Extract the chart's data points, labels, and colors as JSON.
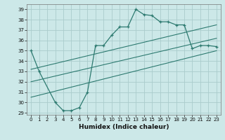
{
  "xlabel": "Humidex (Indice chaleur)",
  "xlim": [
    -0.5,
    23.5
  ],
  "ylim": [
    28.8,
    39.5
  ],
  "yticks": [
    29,
    30,
    31,
    32,
    33,
    34,
    35,
    36,
    37,
    38,
    39
  ],
  "xticks": [
    0,
    1,
    2,
    3,
    4,
    5,
    6,
    7,
    8,
    9,
    10,
    11,
    12,
    13,
    14,
    15,
    16,
    17,
    18,
    19,
    20,
    21,
    22,
    23
  ],
  "background_color": "#cce8e8",
  "grid_color": "#aacccc",
  "line_color": "#2d7a70",
  "main_curve_x": [
    0,
    1,
    3,
    4,
    5,
    6,
    7,
    8,
    9,
    10,
    11,
    12,
    13,
    14,
    15,
    16,
    17,
    18,
    19,
    20,
    21,
    22,
    23
  ],
  "main_curve_y": [
    35.0,
    33.0,
    30.0,
    29.2,
    29.2,
    29.5,
    31.0,
    35.5,
    35.5,
    36.5,
    37.3,
    37.3,
    39.0,
    38.5,
    38.4,
    37.8,
    37.8,
    37.5,
    37.5,
    35.2,
    35.5,
    35.5,
    35.4
  ],
  "trend1_x": [
    0,
    23
  ],
  "trend1_y": [
    33.2,
    37.5
  ],
  "trend2_x": [
    0,
    23
  ],
  "trend2_y": [
    32.0,
    36.2
  ],
  "trend3_x": [
    0,
    23
  ],
  "trend3_y": [
    30.5,
    35.0
  ]
}
